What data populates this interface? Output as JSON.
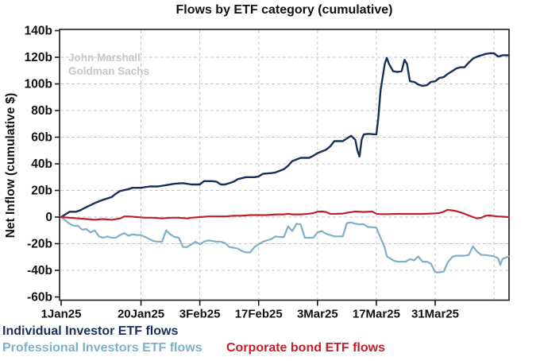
{
  "title": "Flows by ETF category (cumulative)",
  "watermark": {
    "line1": "John Marshall",
    "line2": "Goldman Sachs"
  },
  "chart_data": {
    "type": "line",
    "title": "Flows by ETF category (cumulative)",
    "xlabel": "",
    "ylabel": "Net Inflow (cumulative $)",
    "ylim": [
      -60,
      140
    ],
    "ytick_values": [
      140,
      120,
      100,
      80,
      60,
      40,
      20,
      0,
      -20,
      -40,
      -60
    ],
    "ytick_labels": [
      "140b",
      "120b",
      "100b",
      "80b",
      "60b",
      "40b",
      "20b",
      "0",
      "-20b",
      "-40b",
      "-60b"
    ],
    "x_unit": "days_since_1Jan25",
    "xlim_days": [
      0,
      106.6
    ],
    "xticks": [
      {
        "day": 0,
        "label": "1Jan25"
      },
      {
        "day": 19,
        "label": "20Jan25"
      },
      {
        "day": 33,
        "label": "3Feb25"
      },
      {
        "day": 47,
        "label": "17Feb25"
      },
      {
        "day": 61,
        "label": "3Mar25"
      },
      {
        "day": 75,
        "label": "17Mar25"
      },
      {
        "day": 89,
        "label": "31Mar25"
      }
    ],
    "extra_gridline_days": [
      103
    ],
    "grid": "dashed",
    "legend_position": "below",
    "colors": {
      "frame": "#1a1a1a",
      "grid": "#c8c8c8",
      "watermark": "#c7c7c7"
    },
    "series": [
      {
        "name": "Individual Investor ETF flows",
        "color": "#16305c",
        "width": 2.4,
        "points": [
          [
            0,
            0
          ],
          [
            1,
            2
          ],
          [
            2,
            4
          ],
          [
            3.5,
            4
          ],
          [
            4.5,
            5
          ],
          [
            6,
            7.5
          ],
          [
            8,
            10.5
          ],
          [
            10,
            13
          ],
          [
            12,
            15
          ],
          [
            13,
            17.5
          ],
          [
            14,
            19.5
          ],
          [
            16,
            21
          ],
          [
            17,
            22
          ],
          [
            19,
            22
          ],
          [
            21,
            23
          ],
          [
            23,
            23
          ],
          [
            25,
            24
          ],
          [
            27,
            25
          ],
          [
            29,
            25.5
          ],
          [
            31,
            24.5
          ],
          [
            33,
            24.5
          ],
          [
            34,
            27
          ],
          [
            36,
            27
          ],
          [
            37,
            26.5
          ],
          [
            38,
            24.5
          ],
          [
            39,
            24.5
          ],
          [
            41,
            26.5
          ],
          [
            42,
            28.5
          ],
          [
            44,
            30
          ],
          [
            46,
            30
          ],
          [
            47,
            30.5
          ],
          [
            48,
            32.5
          ],
          [
            50,
            33
          ],
          [
            51,
            33.5
          ],
          [
            53,
            36
          ],
          [
            54,
            38.5
          ],
          [
            55,
            42
          ],
          [
            57,
            44.5
          ],
          [
            59,
            44.5
          ],
          [
            60,
            46
          ],
          [
            61,
            48
          ],
          [
            63,
            50.5
          ],
          [
            64,
            53
          ],
          [
            65,
            57
          ],
          [
            67,
            57
          ],
          [
            69,
            61
          ],
          [
            70,
            58
          ],
          [
            70.5,
            50
          ],
          [
            71,
            45.5
          ],
          [
            71.5,
            58
          ],
          [
            72,
            62
          ],
          [
            73,
            62.5
          ],
          [
            75,
            62
          ],
          [
            75.5,
            75
          ],
          [
            76,
            95
          ],
          [
            77,
            115
          ],
          [
            77.5,
            119.5
          ],
          [
            78,
            115
          ],
          [
            79,
            109.5
          ],
          [
            80,
            109
          ],
          [
            81,
            109.5
          ],
          [
            81.7,
            118
          ],
          [
            82.3,
            115
          ],
          [
            83,
            102
          ],
          [
            84,
            101.5
          ],
          [
            85,
            99.5
          ],
          [
            86,
            98.5
          ],
          [
            87,
            99
          ],
          [
            88,
            101.5
          ],
          [
            89,
            102
          ],
          [
            90,
            104.5
          ],
          [
            91,
            105
          ],
          [
            92,
            107.5
          ],
          [
            93,
            109.5
          ],
          [
            94,
            111.5
          ],
          [
            95,
            112.5
          ],
          [
            96,
            112.5
          ],
          [
            97,
            116
          ],
          [
            98,
            119
          ],
          [
            99,
            120.5
          ],
          [
            100,
            121.5
          ],
          [
            101,
            122.5
          ],
          [
            102,
            123
          ],
          [
            103,
            123
          ],
          [
            104,
            120.5
          ],
          [
            105,
            121.5
          ],
          [
            106.5,
            121.5
          ]
        ]
      },
      {
        "name": "Professional Investors ETF flows",
        "color": "#7fb0c8",
        "width": 2.2,
        "points": [
          [
            0,
            0
          ],
          [
            1,
            -2.5
          ],
          [
            2,
            -5
          ],
          [
            3,
            -6.5
          ],
          [
            4,
            -6.5
          ],
          [
            5,
            -9.5
          ],
          [
            6,
            -9
          ],
          [
            7,
            -11.5
          ],
          [
            8,
            -10
          ],
          [
            9,
            -14.5
          ],
          [
            10,
            -15.5
          ],
          [
            11,
            -14.5
          ],
          [
            12,
            -15.5
          ],
          [
            13,
            -15.5
          ],
          [
            14,
            -13.5
          ],
          [
            15,
            -12
          ],
          [
            16,
            -14
          ],
          [
            17,
            -13
          ],
          [
            18,
            -13.5
          ],
          [
            19,
            -13.5
          ],
          [
            20,
            -15
          ],
          [
            22,
            -18
          ],
          [
            23,
            -18.5
          ],
          [
            24,
            -18.5
          ],
          [
            25,
            -10
          ],
          [
            26,
            -13
          ],
          [
            27,
            -15
          ],
          [
            28,
            -15.5
          ],
          [
            29,
            -22.5
          ],
          [
            30,
            -22.5
          ],
          [
            31,
            -20.5
          ],
          [
            32,
            -18.5
          ],
          [
            33,
            -20.5
          ],
          [
            34,
            -18.5
          ],
          [
            35,
            -17.5
          ],
          [
            37,
            -18.5
          ],
          [
            38,
            -18.5
          ],
          [
            39,
            -19.5
          ],
          [
            40,
            -22.5
          ],
          [
            42,
            -23.5
          ],
          [
            43,
            -25.5
          ],
          [
            44,
            -26.5
          ],
          [
            45,
            -26.5
          ],
          [
            46,
            -22.5
          ],
          [
            47,
            -20.5
          ],
          [
            48,
            -18.5
          ],
          [
            50,
            -16.5
          ],
          [
            51,
            -14.5
          ],
          [
            52,
            -15
          ],
          [
            53,
            -15
          ],
          [
            54,
            -7
          ],
          [
            55,
            -10.5
          ],
          [
            56,
            -5
          ],
          [
            57,
            -5.5
          ],
          [
            58,
            -15.5
          ],
          [
            59,
            -15.5
          ],
          [
            60,
            -15.5
          ],
          [
            61,
            -11.5
          ],
          [
            62,
            -10.5
          ],
          [
            63,
            -12.5
          ],
          [
            64,
            -13.5
          ],
          [
            65,
            -14.5
          ],
          [
            67,
            -14.5
          ],
          [
            68,
            -4.5
          ],
          [
            69,
            -4
          ],
          [
            70,
            -5
          ],
          [
            71,
            -5.5
          ],
          [
            72,
            -5.3
          ],
          [
            73,
            -7.5
          ],
          [
            74,
            -7.5
          ],
          [
            75,
            -8
          ],
          [
            76,
            -15.5
          ],
          [
            77,
            -23
          ],
          [
            77.5,
            -29.5
          ],
          [
            78,
            -30.5
          ],
          [
            79,
            -32.5
          ],
          [
            80,
            -33.5
          ],
          [
            82,
            -33.5
          ],
          [
            83,
            -31.5
          ],
          [
            84,
            -32.5
          ],
          [
            85,
            -29.5
          ],
          [
            86,
            -33.5
          ],
          [
            87,
            -33.5
          ],
          [
            88,
            -35
          ],
          [
            89,
            -41.5
          ],
          [
            90,
            -41.5
          ],
          [
            91,
            -41
          ],
          [
            92,
            -34
          ],
          [
            93,
            -30
          ],
          [
            94,
            -29
          ],
          [
            96,
            -29
          ],
          [
            97,
            -28.5
          ],
          [
            98,
            -22
          ],
          [
            99,
            -26
          ],
          [
            100,
            -28.5
          ],
          [
            101,
            -28.5
          ],
          [
            102,
            -29
          ],
          [
            103,
            -29.5
          ],
          [
            104,
            -31
          ],
          [
            104.5,
            -36
          ],
          [
            105,
            -31.5
          ],
          [
            106.5,
            -29.5
          ]
        ]
      },
      {
        "name": "Corporate bond ETF flows",
        "color": "#c1202b",
        "width": 2.2,
        "points": [
          [
            0,
            0
          ],
          [
            2,
            -0.5
          ],
          [
            4,
            -1
          ],
          [
            6,
            -1.5
          ],
          [
            8,
            -2
          ],
          [
            10,
            -1.5
          ],
          [
            12,
            -2
          ],
          [
            14,
            -1
          ],
          [
            15,
            0.5
          ],
          [
            16,
            0.5
          ],
          [
            18,
            0
          ],
          [
            20,
            -0.5
          ],
          [
            22,
            -0.5
          ],
          [
            24,
            -1
          ],
          [
            26,
            -0.5
          ],
          [
            28,
            -0.5
          ],
          [
            30,
            -1
          ],
          [
            31,
            -0.5
          ],
          [
            33,
            0
          ],
          [
            35,
            0.5
          ],
          [
            37,
            0.5
          ],
          [
            39,
            0.5
          ],
          [
            41,
            1
          ],
          [
            43,
            1
          ],
          [
            45,
            1.5
          ],
          [
            47,
            1.5
          ],
          [
            49,
            1.5
          ],
          [
            51,
            2
          ],
          [
            53,
            2
          ],
          [
            54,
            2.5
          ],
          [
            55,
            2
          ],
          [
            57,
            2
          ],
          [
            59,
            2.5
          ],
          [
            60,
            3
          ],
          [
            61,
            4
          ],
          [
            62,
            4.2
          ],
          [
            63,
            3.8
          ],
          [
            64,
            2.5
          ],
          [
            65,
            2.4
          ],
          [
            67,
            2.6
          ],
          [
            68,
            3.2
          ],
          [
            70,
            4.2
          ],
          [
            72,
            3.8
          ],
          [
            74,
            4.2
          ],
          [
            75,
            2.5
          ],
          [
            76,
            2.2
          ],
          [
            78,
            2.2
          ],
          [
            80,
            2.4
          ],
          [
            82,
            2.4
          ],
          [
            84,
            2.4
          ],
          [
            86,
            2.4
          ],
          [
            88,
            2.6
          ],
          [
            89,
            2.8
          ],
          [
            90,
            3
          ],
          [
            91,
            4
          ],
          [
            92,
            5.5
          ],
          [
            93,
            5
          ],
          [
            94,
            4.5
          ],
          [
            95,
            3.5
          ],
          [
            96,
            2.5
          ],
          [
            97,
            1.2
          ],
          [
            98,
            0
          ],
          [
            99,
            -1
          ],
          [
            100,
            -0.5
          ],
          [
            101,
            1
          ],
          [
            102,
            1.2
          ],
          [
            103,
            0.8
          ],
          [
            104,
            0.5
          ],
          [
            105,
            0.3
          ],
          [
            106.5,
            0
          ]
        ]
      }
    ]
  },
  "legend": {
    "row1_item": "Individual Investor ETF flows",
    "row2_item_a": "Professional Investors ETF flows",
    "row2_item_b": "Corporate bond ETF flows"
  }
}
